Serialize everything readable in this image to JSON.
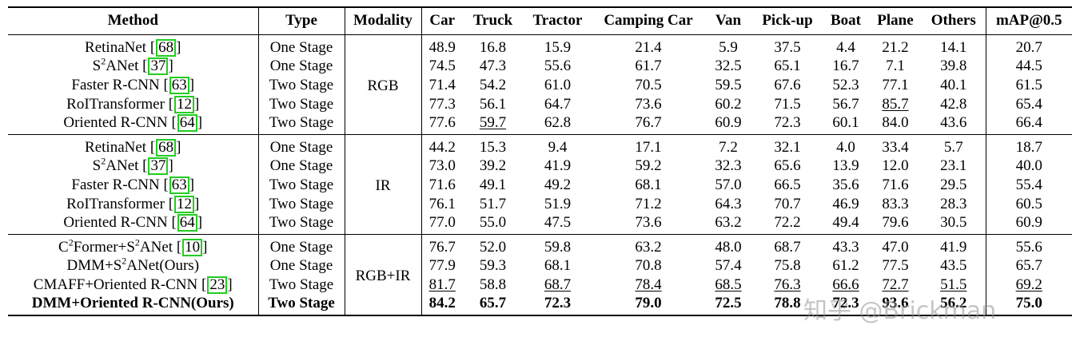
{
  "table": {
    "headers": [
      "Method",
      "Type",
      "Modality",
      "Car",
      "Truck",
      "Tractor",
      "Camping Car",
      "Van",
      "Pick-up",
      "Boat",
      "Plane",
      "Others",
      "mAP@0.5"
    ],
    "groups": [
      {
        "modality": "RGB",
        "rows": [
          {
            "method": "RetinaNet",
            "sup": "",
            "ref": "68",
            "type": "One Stage",
            "values": [
              "48.9",
              "16.8",
              "15.9",
              "21.4",
              "5.9",
              "37.5",
              "4.4",
              "21.2",
              "14.1",
              "20.7"
            ],
            "underline": [],
            "bold": false
          },
          {
            "method": "S",
            "sup": "2",
            "method_suffix": "ANet",
            "ref": "37",
            "type": "One Stage",
            "values": [
              "74.5",
              "47.3",
              "55.6",
              "61.7",
              "32.5",
              "65.1",
              "16.7",
              "7.1",
              "39.8",
              "44.5"
            ],
            "underline": [],
            "bold": false
          },
          {
            "method": "Faster R-CNN",
            "sup": "",
            "ref": "63",
            "type": "Two Stage",
            "values": [
              "71.4",
              "54.2",
              "61.0",
              "70.5",
              "59.5",
              "67.6",
              "52.3",
              "77.1",
              "40.1",
              "61.5"
            ],
            "underline": [],
            "bold": false
          },
          {
            "method": "RoITransformer",
            "sup": "",
            "ref": "12",
            "type": "Two Stage",
            "values": [
              "77.3",
              "56.1",
              "64.7",
              "73.6",
              "60.2",
              "71.5",
              "56.7",
              "85.7",
              "42.8",
              "65.4"
            ],
            "underline": [
              7
            ],
            "bold": false
          },
          {
            "method": "Oriented R-CNN",
            "sup": "",
            "ref": "64",
            "type": "Two Stage",
            "values": [
              "77.6",
              "59.7",
              "62.8",
              "76.7",
              "60.9",
              "72.3",
              "60.1",
              "84.0",
              "43.6",
              "66.4"
            ],
            "underline": [
              1
            ],
            "bold": false
          }
        ]
      },
      {
        "modality": "IR",
        "rows": [
          {
            "method": "RetinaNet",
            "sup": "",
            "ref": "68",
            "type": "One Stage",
            "values": [
              "44.2",
              "15.3",
              "9.4",
              "17.1",
              "7.2",
              "32.1",
              "4.0",
              "33.4",
              "5.7",
              "18.7"
            ],
            "underline": [],
            "bold": false
          },
          {
            "method": "S",
            "sup": "2",
            "method_suffix": "ANet",
            "ref": "37",
            "type": "One Stage",
            "values": [
              "73.0",
              "39.2",
              "41.9",
              "59.2",
              "32.3",
              "65.6",
              "13.9",
              "12.0",
              "23.1",
              "40.0"
            ],
            "underline": [],
            "bold": false
          },
          {
            "method": "Faster R-CNN",
            "sup": "",
            "ref": "63",
            "type": "Two Stage",
            "values": [
              "71.6",
              "49.1",
              "49.2",
              "68.1",
              "57.0",
              "66.5",
              "35.6",
              "71.6",
              "29.5",
              "55.4"
            ],
            "underline": [],
            "bold": false
          },
          {
            "method": "RoITransformer",
            "sup": "",
            "ref": "12",
            "type": "Two Stage",
            "values": [
              "76.1",
              "51.7",
              "51.9",
              "71.2",
              "64.3",
              "70.7",
              "46.9",
              "83.3",
              "28.3",
              "60.5"
            ],
            "underline": [],
            "bold": false
          },
          {
            "method": "Oriented R-CNN",
            "sup": "",
            "ref": "64",
            "type": "Two Stage",
            "values": [
              "77.0",
              "55.0",
              "47.5",
              "73.6",
              "63.2",
              "72.2",
              "49.4",
              "79.6",
              "30.5",
              "60.9"
            ],
            "underline": [],
            "bold": false
          }
        ]
      },
      {
        "modality": "RGB+IR",
        "rows": [
          {
            "method": "C",
            "sup": "2",
            "method_suffix": "Former+S",
            "sup2": "2",
            "method_suffix2": "ANet",
            "ref": "10",
            "type": "One Stage",
            "values": [
              "76.7",
              "52.0",
              "59.8",
              "63.2",
              "48.0",
              "68.7",
              "43.3",
              "47.0",
              "41.9",
              "55.6"
            ],
            "underline": [],
            "bold": false
          },
          {
            "method": "DMM+S",
            "sup": "2",
            "method_suffix": "ANet(Ours)",
            "ref": "",
            "type": "One Stage",
            "values": [
              "77.9",
              "59.3",
              "68.1",
              "70.8",
              "57.4",
              "75.8",
              "61.2",
              "77.5",
              "43.5",
              "65.7"
            ],
            "underline": [],
            "bold": false
          },
          {
            "method": "CMAFF+Oriented R-CNN",
            "sup": "",
            "ref": "23",
            "type": "Two Stage",
            "values": [
              "81.7",
              "58.8",
              "68.7",
              "78.4",
              "68.5",
              "76.3",
              "66.6",
              "72.7",
              "51.5",
              "69.2"
            ],
            "underline": [
              0,
              2,
              3,
              4,
              5,
              6,
              7,
              8,
              9
            ],
            "bold": false
          },
          {
            "method": "DMM+Oriented R-CNN(Ours)",
            "sup": "",
            "ref": "",
            "type": "Two Stage",
            "values": [
              "84.2",
              "65.7",
              "72.3",
              "79.0",
              "72.5",
              "78.8",
              "72.3",
              "93.6",
              "56.2",
              "75.0"
            ],
            "underline": [],
            "bold": true
          }
        ]
      }
    ]
  },
  "watermark": "知乎 @Brickman"
}
